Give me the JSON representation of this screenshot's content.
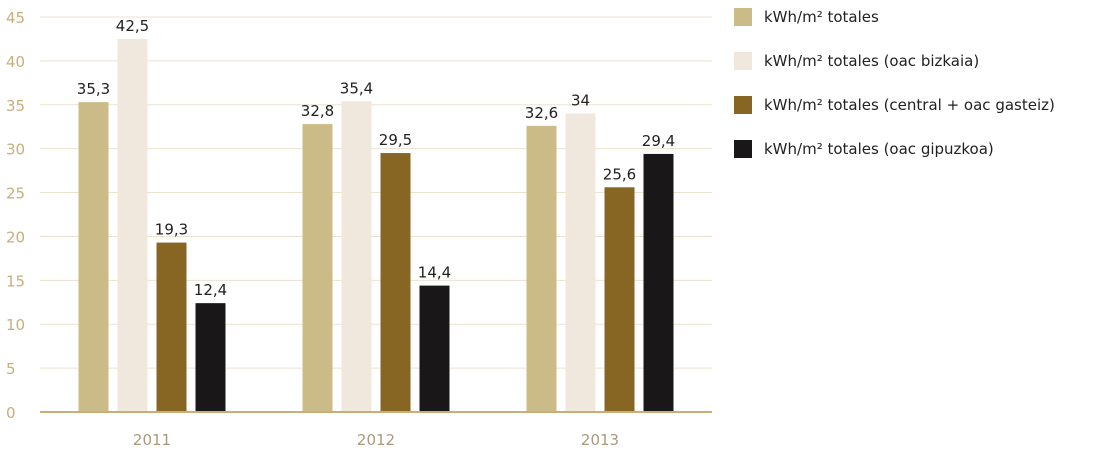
{
  "chart_data": {
    "type": "bar",
    "categories": [
      "2011",
      "2012",
      "2013"
    ],
    "series": [
      {
        "name": "kWh/m² totales",
        "values": [
          35.3,
          32.8,
          32.6
        ],
        "labels": [
          "35,3",
          "32,8",
          "32,6"
        ],
        "color": "#cbbb87"
      },
      {
        "name": "kWh/m² totales (oac bizkaia)",
        "values": [
          42.5,
          35.4,
          34
        ],
        "labels": [
          "42,5",
          "35,4",
          "34"
        ],
        "color": "#f0e8dc"
      },
      {
        "name": "kWh/m² totales (central + oac gasteiz)",
        "values": [
          19.3,
          29.5,
          25.6
        ],
        "labels": [
          "19,3",
          "29,5",
          "25,6"
        ],
        "color": "#876623"
      },
      {
        "name": "kWh/m² totales (oac gipuzkoa)",
        "values": [
          12.4,
          14.4,
          29.4
        ],
        "labels": [
          "12,4",
          "14,4",
          "29,4"
        ],
        "color": "#1a1718"
      }
    ],
    "yticks": [
      "0",
      "5",
      "10",
      "15",
      "20",
      "25",
      "30",
      "35",
      "40",
      "45"
    ],
    "ylim": [
      0,
      45
    ],
    "grid": true,
    "legend_position": "right",
    "gridline_color": "#ece3cf",
    "axis_color": "#c9ae7a"
  }
}
